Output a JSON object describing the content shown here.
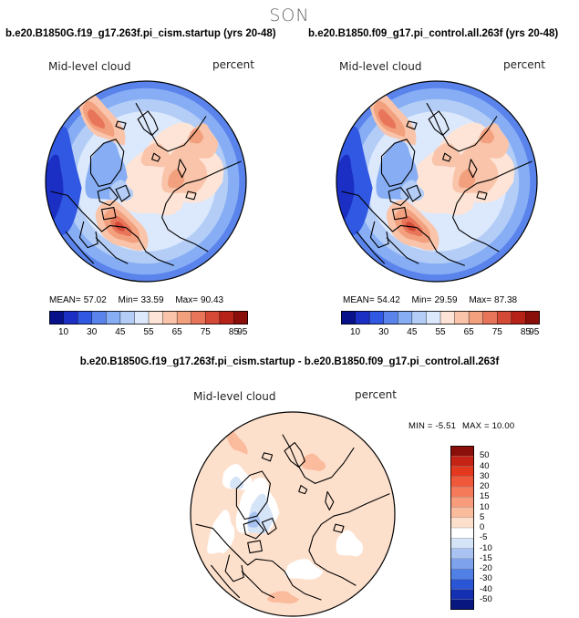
{
  "season": "SON",
  "panels": [
    {
      "title": "b.e20.B1850G.f19_g17.263f.pi_cism.startup (yrs 20-48)",
      "variable": "Mid-level cloud",
      "units": "percent",
      "mean_label": "MEAN=",
      "mean": "57.02",
      "min_label": "Min=",
      "min": "33.59",
      "max_label": "Max=",
      "max": "90.43"
    },
    {
      "title": "b.e20.B1850.f09_g17.pi_control.all.263f (yrs 20-48)",
      "variable": "Mid-level cloud",
      "units": "percent",
      "mean_label": "MEAN=",
      "mean": "54.42",
      "min_label": "Min=",
      "min": "29.59",
      "max_label": "Max=",
      "max": "87.38"
    }
  ],
  "diff": {
    "title": "b.e20.B1850G.f19_g17.263f.pi_cism.startup - b.e20.B1850.f09_g17.pi_control.all.263f",
    "variable": "Mid-level cloud",
    "units": "percent",
    "min_label": "MIN =",
    "min": "-5.51",
    "max_label": "MAX =",
    "max": "10.00"
  },
  "chart_data": [
    {
      "type": "heatmap",
      "projection": "polar stereographic (north pole)",
      "title": "b.e20.B1850G.f19_g17.263f.pi_cism.startup (yrs 20-48)",
      "zlabel": "percent",
      "levels": [
        10,
        30,
        45,
        55,
        65,
        75,
        85,
        95
      ],
      "colors": [
        "#08108a",
        "#1c2fc4",
        "#3158e2",
        "#5a84ec",
        "#87aef4",
        "#b3cdf7",
        "#dce8fb",
        "#fde4d6",
        "#f9c4aa",
        "#f2a07e",
        "#e8755a",
        "#d44a37",
        "#b62218",
        "#8a0e0a"
      ],
      "mean": 57.02,
      "min": 33.59,
      "max": 90.43
    },
    {
      "type": "heatmap",
      "projection": "polar stereographic (north pole)",
      "title": "b.e20.B1850.f09_g17.pi_control.all.263f (yrs 20-48)",
      "zlabel": "percent",
      "levels": [
        10,
        30,
        45,
        55,
        65,
        75,
        85,
        95
      ],
      "colors": [
        "#08108a",
        "#1c2fc4",
        "#3158e2",
        "#5a84ec",
        "#87aef4",
        "#b3cdf7",
        "#dce8fb",
        "#fde4d6",
        "#f9c4aa",
        "#f2a07e",
        "#e8755a",
        "#d44a37",
        "#b62218",
        "#8a0e0a"
      ],
      "mean": 54.42,
      "min": 29.59,
      "max": 87.38
    },
    {
      "type": "heatmap",
      "projection": "polar stereographic (north pole)",
      "title": "b.e20.B1850G.f19_g17.263f.pi_cism.startup - b.e20.B1850.f09_g17.pi_control.all.263f",
      "zlabel": "percent",
      "levels": [
        "50",
        "40",
        "30",
        "20",
        "15",
        "10",
        "5",
        "0",
        "-5",
        "-10",
        "-15",
        "-20",
        "-30",
        "-40",
        "-50"
      ],
      "colors": [
        "#8a0e0a",
        "#c42316",
        "#e4391e",
        "#f0583a",
        "#f47a5a",
        "#f89c7c",
        "#fbbc9e",
        "#fde0cc",
        "#ffffff",
        "#d6e4f8",
        "#a9c4f2",
        "#7ea3ec",
        "#5080e6",
        "#2a56d6",
        "#1430b0",
        "#081680"
      ],
      "min": -5.51,
      "max": 10.0
    }
  ],
  "colorbar_ticks": [
    "10",
    "30",
    "45",
    "55",
    "65",
    "75",
    "85",
    "95"
  ],
  "diff_colorbar_ticks": [
    "50",
    "40",
    "30",
    "20",
    "15",
    "10",
    "5",
    "0",
    "-5",
    "-10",
    "-15",
    "-20",
    "-30",
    "-40",
    "-50"
  ]
}
